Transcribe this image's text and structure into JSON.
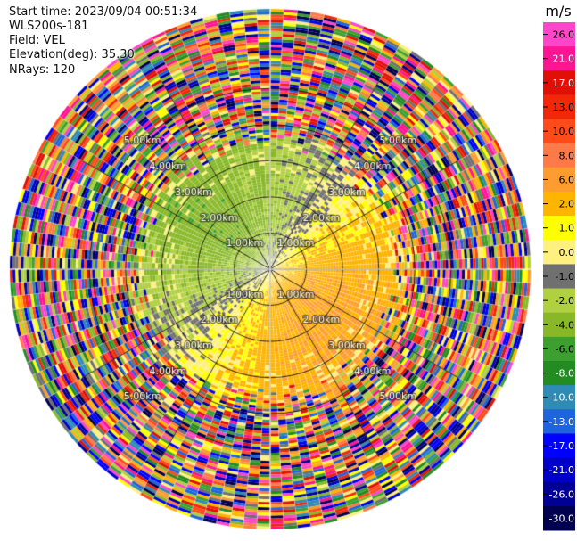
{
  "header": {
    "start_time": "Start time: 2023/09/04 00:51:34",
    "instrument": "WLS200s-181",
    "field": "Field: VEL",
    "elevation": "Elevation(deg): 35.30",
    "nrays": "NRays: 120"
  },
  "chart_data": {
    "type": "heatmap",
    "projection": "polar-ppi",
    "field": "VEL",
    "units": "m/s",
    "nrays": 120,
    "elevation_deg": 35.3,
    "range_rings_km": [
      1.0,
      2.0,
      3.0,
      4.0,
      5.0
    ],
    "range_ring_labels": [
      "1.00km",
      "2.00km",
      "3.00km",
      "4.00km",
      "5.00km"
    ],
    "max_range_km": 7.2,
    "spokes_deg": [
      0,
      30,
      60,
      90,
      120,
      150,
      180,
      210,
      240,
      270,
      300,
      330
    ],
    "colorbar": {
      "label": "m/s",
      "ticks": [
        26.0,
        21.0,
        17.0,
        13.0,
        10.0,
        8.0,
        6.0,
        2.0,
        1.0,
        0.0,
        -1.0,
        -2.0,
        -4.0,
        -6.0,
        -8.0,
        -10.0,
        -13.0,
        -17.0,
        -21.0,
        -26.0,
        -30.0
      ],
      "tick_labels": [
        "26.0",
        "21.0",
        "17.0",
        "13.0",
        "10.0",
        "8.0",
        "6.0",
        "2.0",
        "1.0",
        "0.0",
        "-1.0",
        "-2.0",
        "-4.0",
        "-6.0",
        "-8.0",
        "-10.0",
        "-13.0",
        "-17.0",
        "-21.0",
        "-26.0",
        "-30.0"
      ],
      "colors": [
        "#ff45c8",
        "#ff1493",
        "#e01008",
        "#f02808",
        "#ff4a1a",
        "#ff7a48",
        "#ff9c30",
        "#ffb400",
        "#ffff00",
        "#fff080",
        "#707070",
        "#b0d040",
        "#88b828",
        "#3ca030",
        "#228b22",
        "#2e8bb4",
        "#1e64dc",
        "#0000ff",
        "#0000c8",
        "#000096",
        "#000050"
      ]
    }
  }
}
